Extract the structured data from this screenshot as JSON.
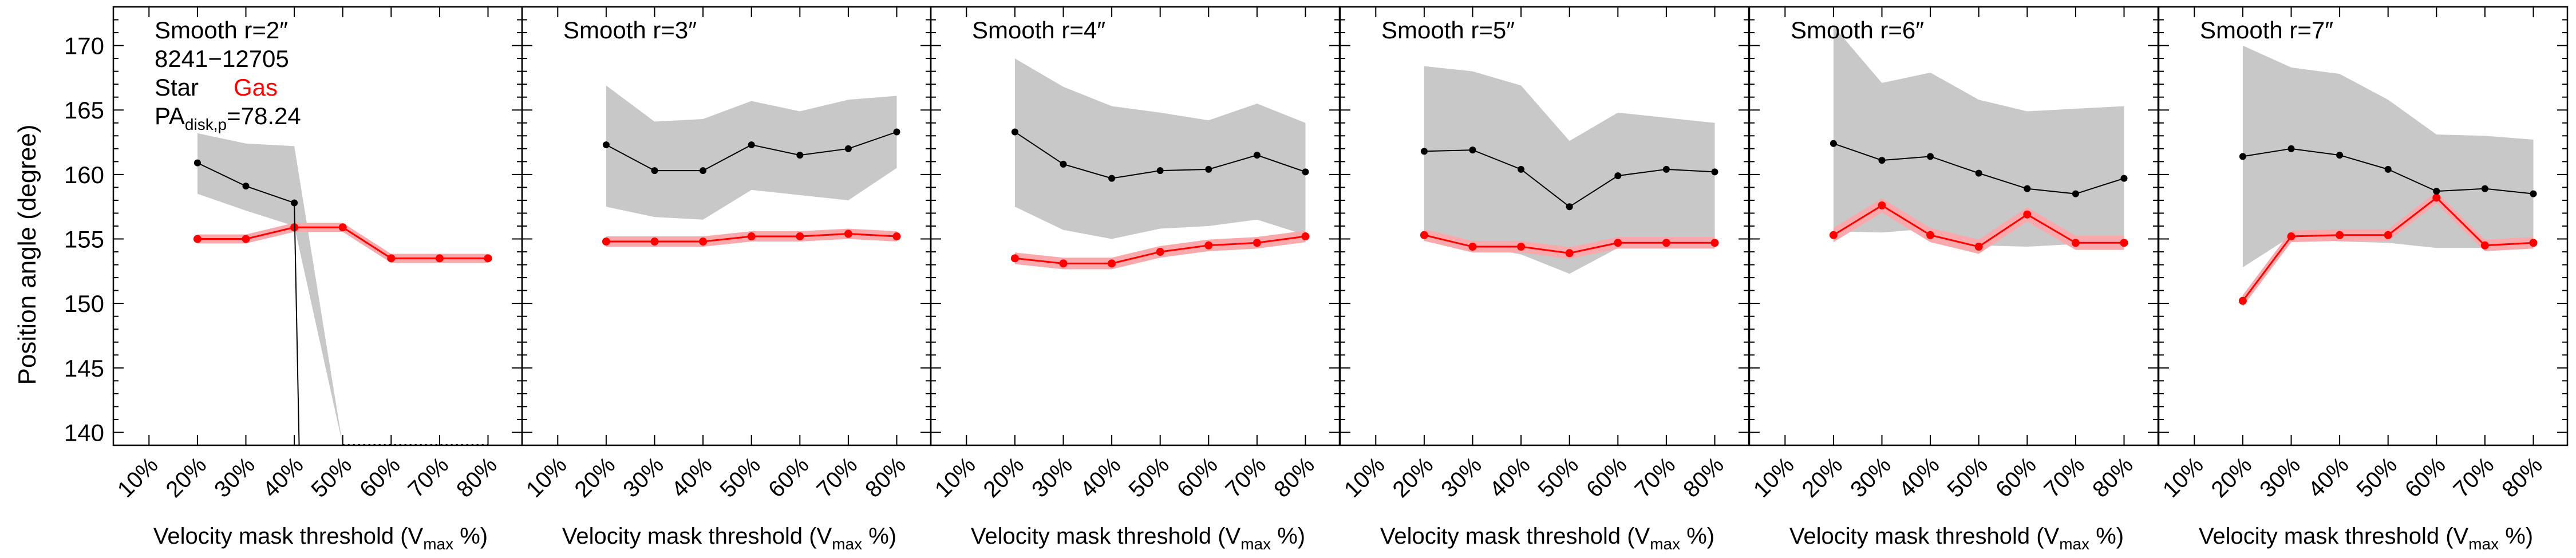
{
  "figure": {
    "ylabel": "Position angle (degree)",
    "xlabel_main": "Velocity mask threshold (V",
    "xlabel_sub": "max",
    "xlabel_end": " %)",
    "info_lines": [
      "8241−12705"
    ],
    "legend": {
      "star": "Star",
      "gas": "Gas"
    },
    "pa_label": {
      "main": "PA",
      "sub": "disk,p",
      "value": "=78.24"
    }
  },
  "colors": {
    "star": "#000000",
    "gas": "#ff0000",
    "gas_band": "#f9a9ac",
    "star_band": "#c8c8c8",
    "axis": "#000000"
  },
  "chart_data": [
    {
      "type": "line",
      "title": "Smooth r=2″",
      "categories": [
        "10%",
        "20%",
        "30%",
        "40%",
        "50%",
        "60%",
        "70%",
        "80%"
      ],
      "x": [
        10,
        20,
        30,
        40,
        50,
        60,
        70,
        80
      ],
      "ylim": [
        139,
        173
      ],
      "yticks": [
        140,
        145,
        150,
        155,
        160,
        165,
        170
      ],
      "series": [
        {
          "name": "Star",
          "x": [
            20,
            30,
            40,
            41
          ],
          "values": [
            160.9,
            159.1,
            157.8,
            139
          ],
          "band_lo": [
            158.5,
            157.2,
            156.0,
            139
          ],
          "band_hi": [
            163.2,
            162.4,
            162.2,
            139
          ],
          "band_ext": {
            "x": [
              40,
              50
            ],
            "lo": [
              156.0,
              139
            ],
            "hi": [
              162.2,
              139
            ]
          }
        },
        {
          "name": "Gas",
          "x": [
            20,
            30,
            40,
            50,
            60,
            70,
            80
          ],
          "values": [
            155.0,
            155.0,
            155.9,
            155.9,
            153.5,
            153.5,
            153.5
          ],
          "err": 0.35
        },
        {
          "name": "dotted",
          "x": [
            50,
            80
          ],
          "values": [
            139,
            139
          ]
        }
      ]
    },
    {
      "type": "line",
      "title": "Smooth r=3″",
      "categories": [
        "10%",
        "20%",
        "30%",
        "40%",
        "50%",
        "60%",
        "70%",
        "80%"
      ],
      "x": [
        10,
        20,
        30,
        40,
        50,
        60,
        70,
        80
      ],
      "ylim": [
        139,
        173
      ],
      "series": [
        {
          "name": "Star",
          "x": [
            20,
            30,
            40,
            50,
            60,
            70,
            80
          ],
          "values": [
            162.3,
            160.3,
            160.3,
            162.3,
            161.5,
            162.0,
            163.3
          ],
          "band_lo": [
            157.5,
            156.7,
            156.5,
            158.8,
            158.4,
            158.0,
            160.5
          ],
          "band_hi": [
            166.9,
            164.1,
            164.3,
            165.7,
            164.9,
            165.8,
            166.1
          ]
        },
        {
          "name": "Gas",
          "x": [
            20,
            30,
            40,
            50,
            60,
            70,
            80
          ],
          "values": [
            154.8,
            154.8,
            154.8,
            155.2,
            155.2,
            155.4,
            155.2
          ],
          "err": 0.4
        }
      ]
    },
    {
      "type": "line",
      "title": "Smooth r=4″",
      "categories": [
        "10%",
        "20%",
        "30%",
        "40%",
        "50%",
        "60%",
        "70%",
        "80%"
      ],
      "x": [
        10,
        20,
        30,
        40,
        50,
        60,
        70,
        80
      ],
      "ylim": [
        139,
        173
      ],
      "series": [
        {
          "name": "Star",
          "x": [
            20,
            30,
            40,
            50,
            60,
            70,
            80
          ],
          "values": [
            163.3,
            160.8,
            159.7,
            160.3,
            160.4,
            161.5,
            160.2
          ],
          "band_lo": [
            157.5,
            155.7,
            155.0,
            155.8,
            156.0,
            156.5,
            155.3
          ],
          "band_hi": [
            169.0,
            166.8,
            165.3,
            164.8,
            164.2,
            165.5,
            164.0
          ]
        },
        {
          "name": "Gas",
          "x": [
            20,
            30,
            40,
            50,
            60,
            70,
            80
          ],
          "values": [
            153.5,
            153.1,
            153.1,
            154.0,
            154.5,
            154.7,
            155.2
          ],
          "err": 0.45
        }
      ]
    },
    {
      "type": "line",
      "title": "Smooth r=5″",
      "categories": [
        "10%",
        "20%",
        "30%",
        "40%",
        "50%",
        "60%",
        "70%",
        "80%"
      ],
      "x": [
        10,
        20,
        30,
        40,
        50,
        60,
        70,
        80
      ],
      "ylim": [
        139,
        173
      ],
      "series": [
        {
          "name": "Star",
          "x": [
            20,
            30,
            40,
            50,
            60,
            70,
            80
          ],
          "values": [
            161.8,
            161.9,
            160.4,
            157.5,
            159.9,
            160.4,
            160.2
          ],
          "band_lo": [
            155.0,
            154.5,
            153.8,
            152.3,
            154.3,
            154.5,
            154.4
          ],
          "band_hi": [
            168.4,
            168.0,
            166.9,
            162.6,
            164.8,
            164.4,
            164.0
          ]
        },
        {
          "name": "Gas",
          "x": [
            20,
            30,
            40,
            50,
            60,
            70,
            80
          ],
          "values": [
            155.3,
            154.4,
            154.4,
            153.9,
            154.7,
            154.7,
            154.7
          ],
          "err": 0.45
        }
      ]
    },
    {
      "type": "line",
      "title": "Smooth r=6″",
      "categories": [
        "10%",
        "20%",
        "30%",
        "40%",
        "50%",
        "60%",
        "70%",
        "80%"
      ],
      "x": [
        10,
        20,
        30,
        40,
        50,
        60,
        70,
        80
      ],
      "ylim": [
        139,
        173
      ],
      "series": [
        {
          "name": "Star",
          "x": [
            20,
            30,
            40,
            50,
            60,
            70,
            80
          ],
          "values": [
            162.4,
            161.1,
            161.4,
            160.1,
            158.9,
            158.5,
            159.7
          ],
          "band_lo": [
            155.6,
            155.5,
            155.8,
            154.5,
            154.4,
            154.6,
            155.0
          ],
          "band_hi": [
            171.5,
            167.1,
            167.9,
            165.8,
            164.9,
            165.1,
            165.3
          ]
        },
        {
          "name": "Gas",
          "x": [
            20,
            30,
            40,
            50,
            60,
            70,
            80
          ],
          "values": [
            155.3,
            157.6,
            155.3,
            154.4,
            156.9,
            154.7,
            154.7
          ],
          "err": 0.55
        }
      ]
    },
    {
      "type": "line",
      "title": "Smooth r=7″",
      "categories": [
        "10%",
        "20%",
        "30%",
        "40%",
        "50%",
        "60%",
        "70%",
        "80%"
      ],
      "x": [
        10,
        20,
        30,
        40,
        50,
        60,
        70,
        80
      ],
      "ylim": [
        139,
        173
      ],
      "series": [
        {
          "name": "Star",
          "x": [
            20,
            30,
            40,
            50,
            60,
            70,
            80
          ],
          "values": [
            161.4,
            162.0,
            161.5,
            160.4,
            158.7,
            158.9,
            158.5
          ],
          "band_lo": [
            152.8,
            155.2,
            154.8,
            154.7,
            154.3,
            154.3,
            154.3
          ],
          "band_hi": [
            170.0,
            168.3,
            167.8,
            165.8,
            163.1,
            163.0,
            162.7
          ]
        },
        {
          "name": "Gas",
          "x": [
            20,
            30,
            40,
            50,
            60,
            70,
            80
          ],
          "values": [
            150.2,
            155.2,
            155.3,
            155.3,
            158.2,
            154.5,
            154.7
          ],
          "err": 0.45
        }
      ]
    }
  ]
}
